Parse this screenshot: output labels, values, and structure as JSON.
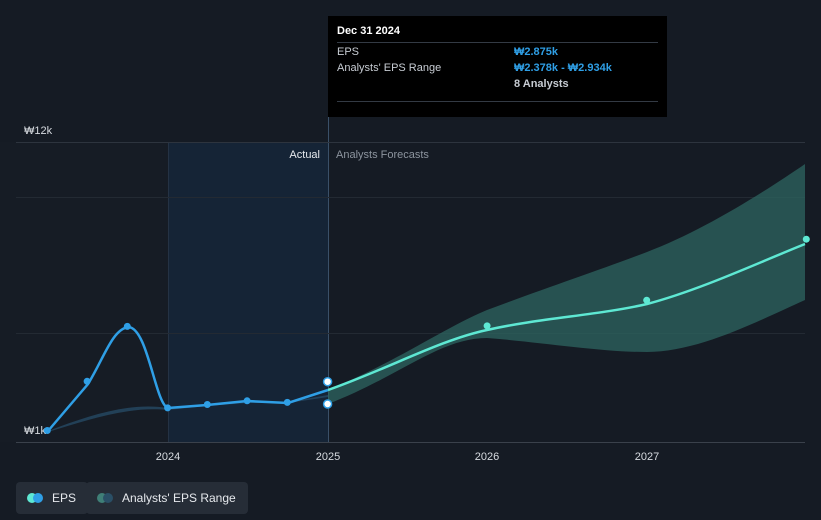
{
  "chart_data": {
    "type": "line",
    "y_axis": {
      "top_label": "₩12k",
      "bottom_label": "₩1k",
      "ylim": [
        1000,
        12000
      ]
    },
    "x_ticks": [
      "2024",
      "2025",
      "2026",
      "2027"
    ],
    "region_labels": {
      "actual": "Actual",
      "forecast": "Analysts Forecasts"
    },
    "series": [
      {
        "name": "EPS",
        "kind": "actual",
        "color": "#2f9fe6",
        "points": [
          [
            "2023-03-31",
            1020
          ],
          [
            "2023-06-30",
            2890
          ],
          [
            "2023-09-30",
            4980
          ],
          [
            "2023-12-31",
            1880
          ],
          [
            "2024-03-31",
            2010
          ],
          [
            "2024-06-30",
            2150
          ],
          [
            "2024-09-30",
            2090
          ],
          [
            "2024-12-31",
            2875
          ]
        ]
      },
      {
        "name": "EPS",
        "kind": "forecast",
        "color": "#5ee8d3",
        "points": [
          [
            "2024-12-31",
            2875
          ],
          [
            "2025-12-31",
            5000
          ],
          [
            "2026-12-31",
            5980
          ],
          [
            "2027-12-31",
            8300
          ]
        ]
      },
      {
        "name": "Analysts' EPS Range",
        "kind": "range",
        "color": "#3f7f77",
        "low": [
          [
            "2024-12-31",
            2378
          ],
          [
            "2025-12-31",
            4050
          ],
          [
            "2026-12-31",
            4120
          ],
          [
            "2027-12-31",
            6000
          ]
        ],
        "high": [
          [
            "2024-12-31",
            2934
          ],
          [
            "2025-12-31",
            5900
          ],
          [
            "2026-12-31",
            8000
          ],
          [
            "2027-12-31",
            11000
          ]
        ]
      }
    ],
    "extra_marker": [
      "2024-12-31",
      2378
    ],
    "highlight_period": [
      "2024-01-01",
      "2024-12-31"
    ],
    "colors": {
      "background": "#151b24",
      "highlight_fill": "#152436",
      "grid": "#2d343e",
      "eps_actual": "#2f9fe6",
      "eps_forecast": "#5ee8d3",
      "range_fill": "#2e6660",
      "axis_text": "#d7dbe0"
    }
  },
  "tooltip": {
    "date": "Dec 31 2024",
    "eps_label": "EPS",
    "eps_value": "₩2.875k",
    "range_label": "Analysts' EPS Range",
    "range_value": "₩2.378k - ₩2.934k",
    "analysts": "8 Analysts"
  },
  "legend": {
    "eps_label": "EPS",
    "range_label": "Analysts' EPS Range"
  }
}
